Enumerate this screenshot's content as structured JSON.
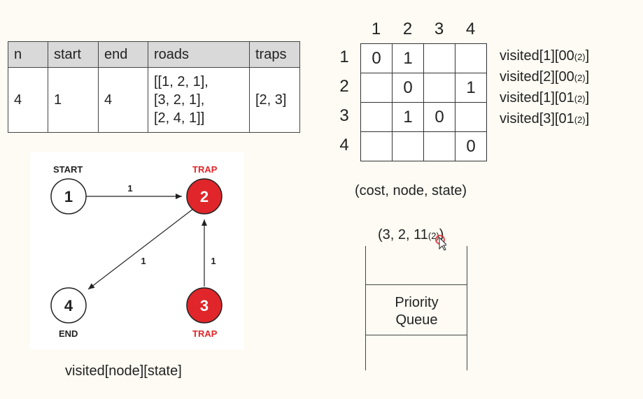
{
  "input_table": {
    "headers": [
      "n",
      "start",
      "end",
      "roads",
      "traps"
    ],
    "row": {
      "n": "4",
      "start": "1",
      "end": "4",
      "roads": [
        "[[1, 2, 1],",
        "[3, 2, 1],",
        "[2, 4, 1]]"
      ],
      "traps": "[2, 3]"
    }
  },
  "graph": {
    "nodes": [
      {
        "id": "1",
        "label": "START",
        "trap": false
      },
      {
        "id": "2",
        "label": "TRAP",
        "trap": true
      },
      {
        "id": "3",
        "label": "TRAP",
        "trap": true
      },
      {
        "id": "4",
        "label": "END",
        "trap": false
      }
    ],
    "edges": [
      {
        "from": "1",
        "to": "2",
        "weight": "1"
      },
      {
        "from": "2",
        "to": "4",
        "weight": "1"
      },
      {
        "from": "3",
        "to": "2",
        "weight": "1"
      }
    ],
    "colors": {
      "trap": "#e0262a",
      "normal": "#ffffff"
    }
  },
  "graph_caption": "visited[node][state]",
  "matrix": {
    "col_headers": [
      "1",
      "2",
      "3",
      "4"
    ],
    "row_headers": [
      "1",
      "2",
      "3",
      "4"
    ],
    "cells": [
      [
        "0",
        "1",
        "",
        ""
      ],
      [
        "",
        "0",
        "",
        "1"
      ],
      [
        "",
        "1",
        "0",
        ""
      ],
      [
        "",
        "",
        "",
        "0"
      ]
    ]
  },
  "visited_lines": [
    {
      "text": "visited[1][00",
      "sub": "(2)",
      "end": "]"
    },
    {
      "text": "visited[2][00",
      "sub": "(2)",
      "end": "]"
    },
    {
      "text": "visited[1][01",
      "sub": "(2)",
      "end": "]"
    },
    {
      "text": "visited[3][01",
      "sub": "(2)",
      "end": "]"
    }
  ],
  "tuple_format": "(cost, node, state)",
  "queue_item": {
    "text": "(3, 2, 11",
    "sub": "(2)",
    "end": ")"
  },
  "priority_queue": {
    "line1": "Priority",
    "line2": "Queue"
  }
}
